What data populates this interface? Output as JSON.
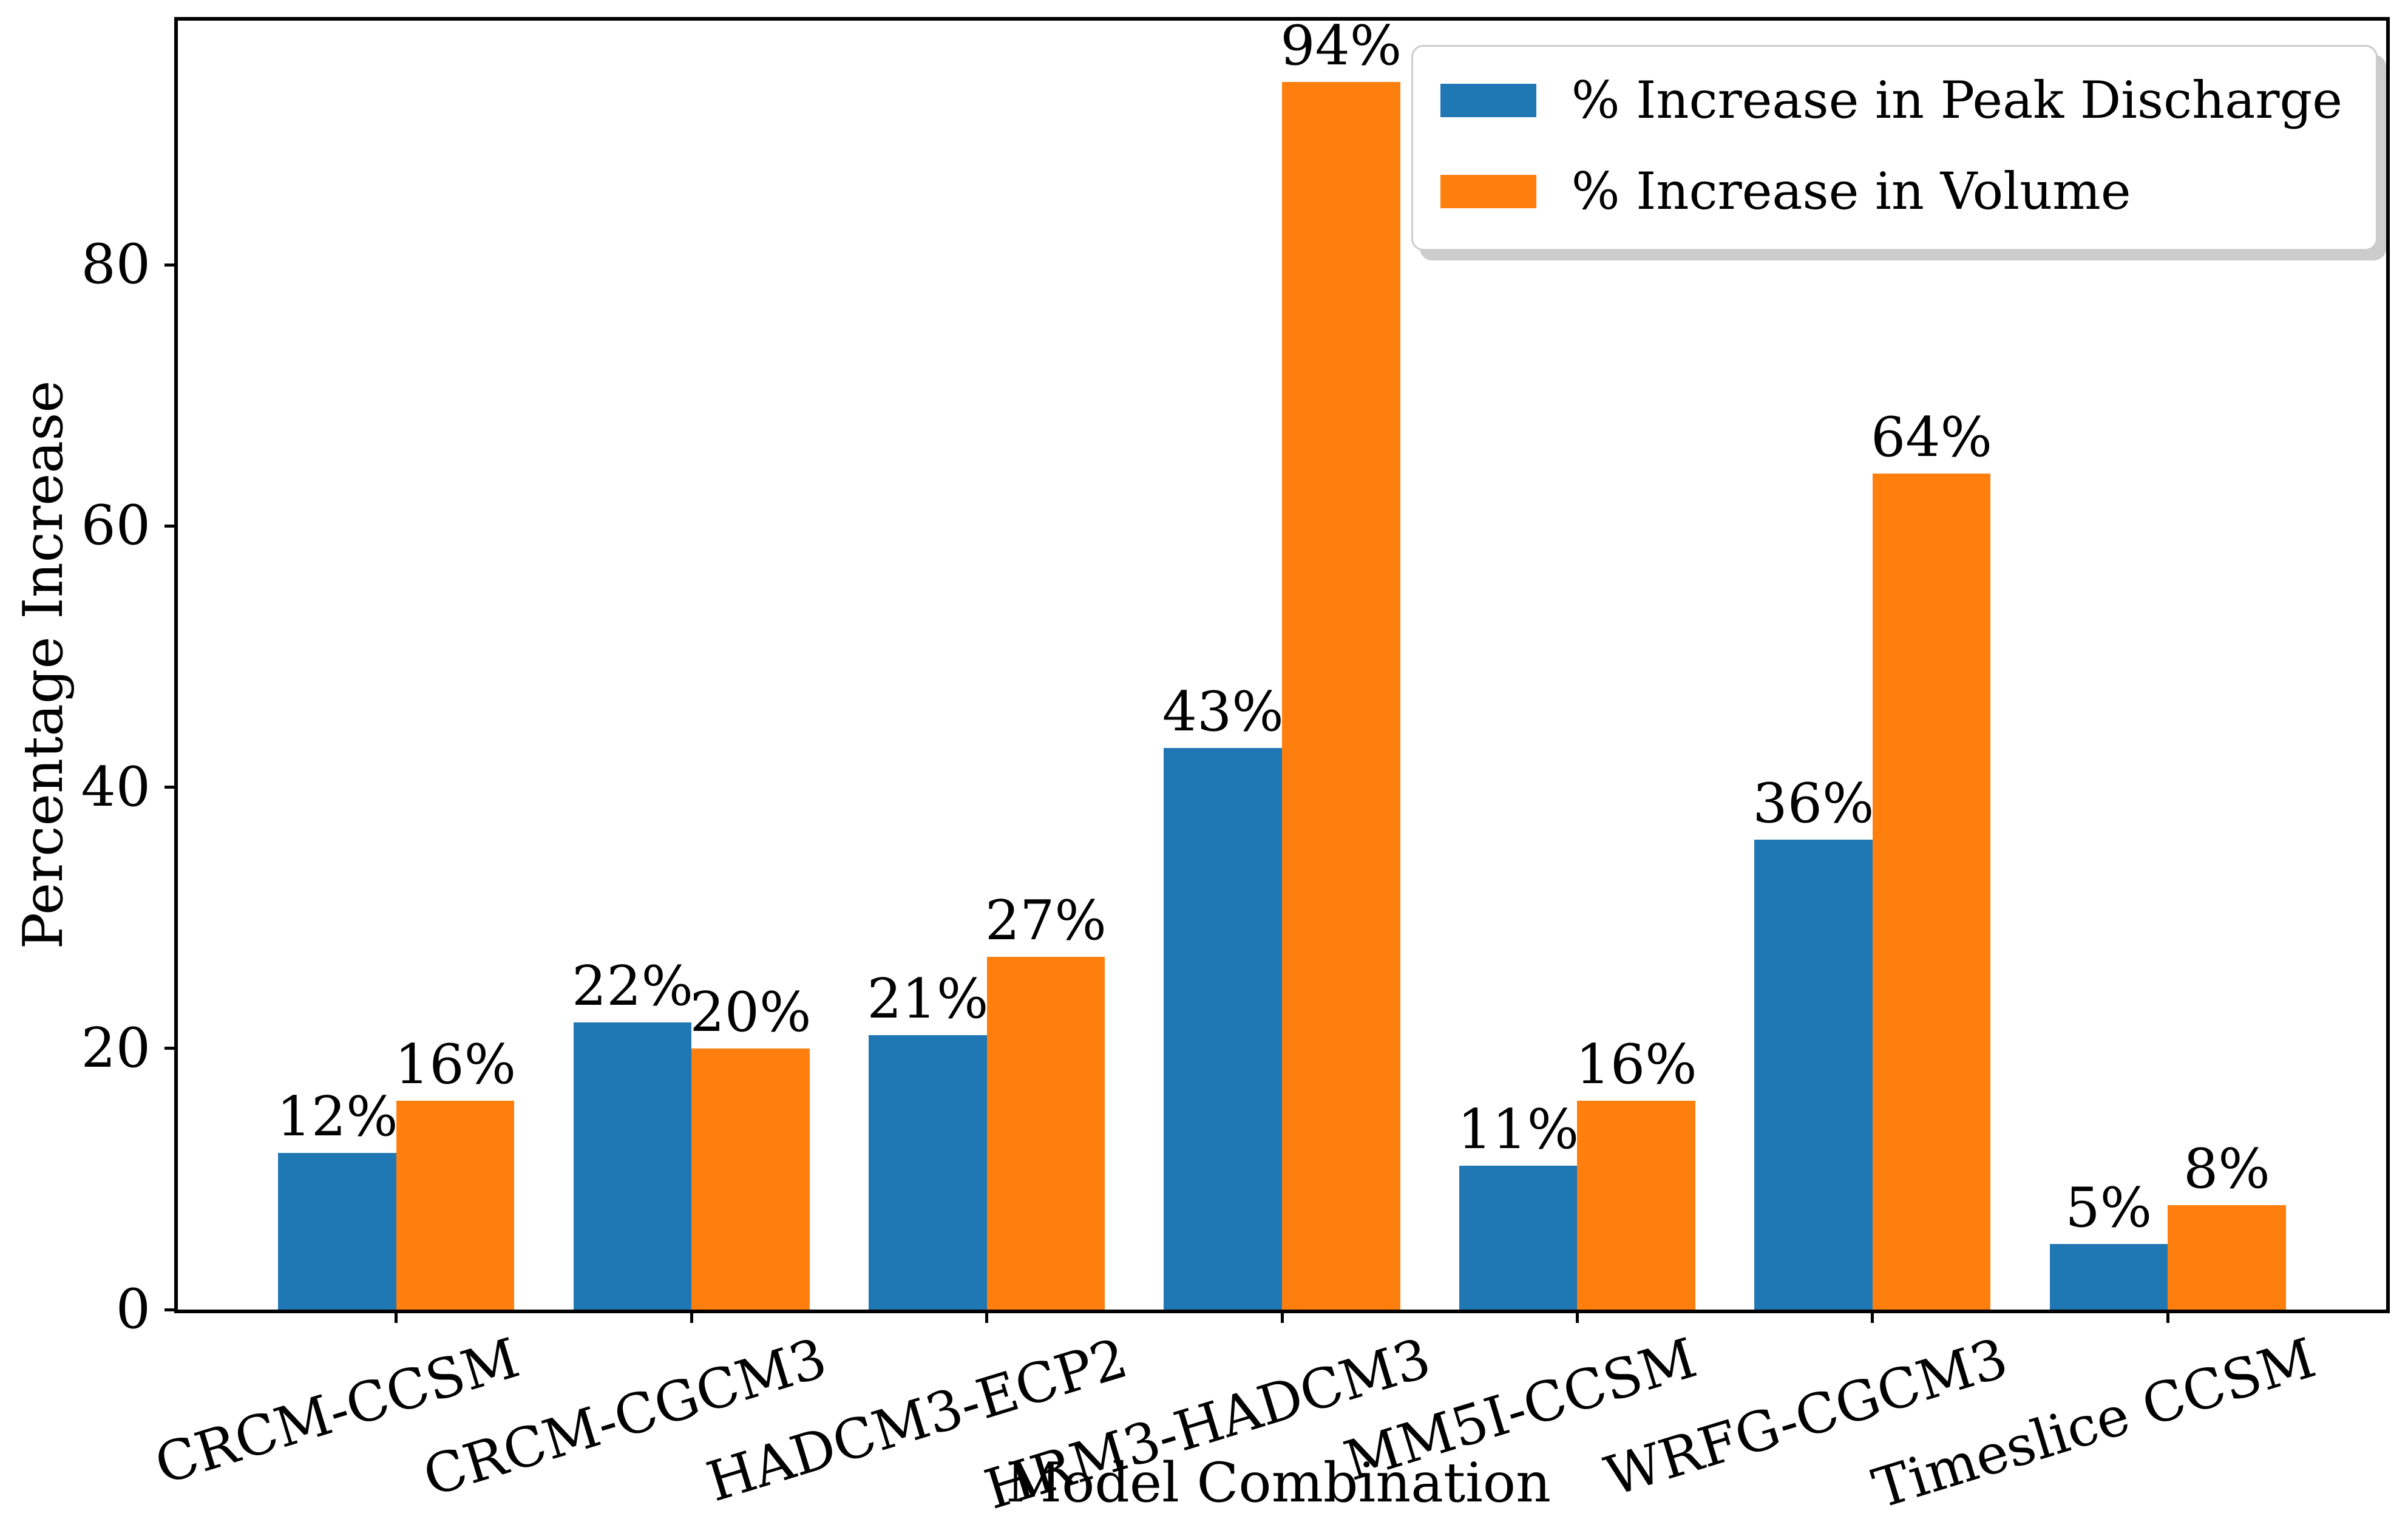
{
  "chart_data": {
    "type": "bar",
    "title": "",
    "categories": [
      "CRCM-CCSM",
      "CRCM-CGCM3",
      "HADCM3-ECP2",
      "HRM3-HADCM3",
      "MM5I-CCSM",
      "WRFG-CGCM3",
      "Timeslice CCSM"
    ],
    "series": [
      {
        "name": "% Increase in Peak Discharge",
        "color": "#1f77b4",
        "values": [
          12,
          22,
          21,
          43,
          11,
          36,
          5
        ],
        "labels": [
          "12%",
          "22%",
          "21%",
          "43%",
          "11%",
          "36%",
          "5%"
        ]
      },
      {
        "name": "% Increase in Volume",
        "color": "#ff7f0e",
        "values": [
          16,
          20,
          27,
          94,
          16,
          64,
          8
        ],
        "labels": [
          "16%",
          "20%",
          "27%",
          "94%",
          "16%",
          "64%",
          "8%"
        ]
      }
    ],
    "xlabel": "Model Combination",
    "ylabel": "Percentage Increase",
    "y_ticks": [
      0,
      20,
      40,
      60,
      80
    ],
    "ylim": [
      0,
      98.7
    ],
    "grid": false,
    "legend_position": "upper-right",
    "background": "#ffffff",
    "text_color": "#000000"
  }
}
